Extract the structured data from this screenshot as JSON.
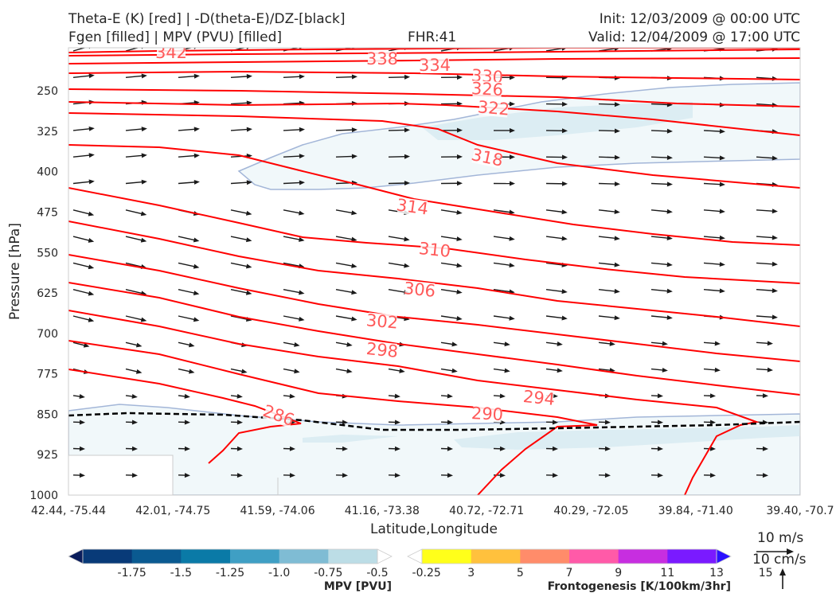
{
  "header": {
    "title_line1": "Theta-E (K) [red] | -D(theta-E)/DZ-[black]",
    "title_line2": "Fgen [filled] | MPV (PVU) [filled]",
    "fhr": "FHR:41",
    "init": "Init: 12/03/2009 @ 00:00 UTC",
    "valid": "Valid: 12/04/2009 @ 17:00 UTC"
  },
  "chart_data": {
    "type": "cross-section",
    "xlabel": "Latitude,Longitude",
    "ylabel": "Pressure [hPa]",
    "x_ticks": [
      "42.44, -75.44",
      "42.01, -74.75",
      "41.59, -74.06",
      "41.16, -73.38",
      "40.72, -72.71",
      "40.29, -72.05",
      "39.84, -71.40",
      "39.40, -70.7"
    ],
    "y_ticks": [
      250,
      325,
      400,
      475,
      550,
      625,
      700,
      775,
      850,
      925,
      1000
    ],
    "y_range": [
      1000,
      170
    ],
    "theta_e_contour_labels": [
      342,
      338,
      334,
      330,
      326,
      322,
      318,
      314,
      310,
      306,
      302,
      298,
      294,
      290,
      286
    ],
    "wind_reference": {
      "horizontal": "10 m/s",
      "vertical": "10 cm/s"
    },
    "colors": {
      "theta_e": "#ff0000",
      "theta_e_label": "#ff5a5a",
      "mpv_outline": "#a3b6d8",
      "wind": "#1a1a1a"
    },
    "mpv_colorbar": {
      "title": "MPV [PVU]",
      "ticks": [
        "-1.75",
        "-1.5",
        "-1.25",
        "-1.0",
        "-0.75",
        "-0.5",
        "-0.25"
      ],
      "colors": [
        "#0a1d5c",
        "#083a78",
        "#0a5a91",
        "#0a7aa7",
        "#3f9fc4",
        "#7fbcd4",
        "#bcdde6",
        "#ffffff"
      ]
    },
    "fgen_colorbar": {
      "title": "Frontogenesis [K/100km/3hr]",
      "ticks": [
        "3",
        "5",
        "7",
        "9",
        "11",
        "13",
        "15"
      ],
      "colors": [
        "#ffffff",
        "#ffff1a",
        "#ffc13d",
        "#ff8c6a",
        "#ff5aa8",
        "#c72ee0",
        "#7a1aff",
        "#2a10ff"
      ]
    }
  }
}
